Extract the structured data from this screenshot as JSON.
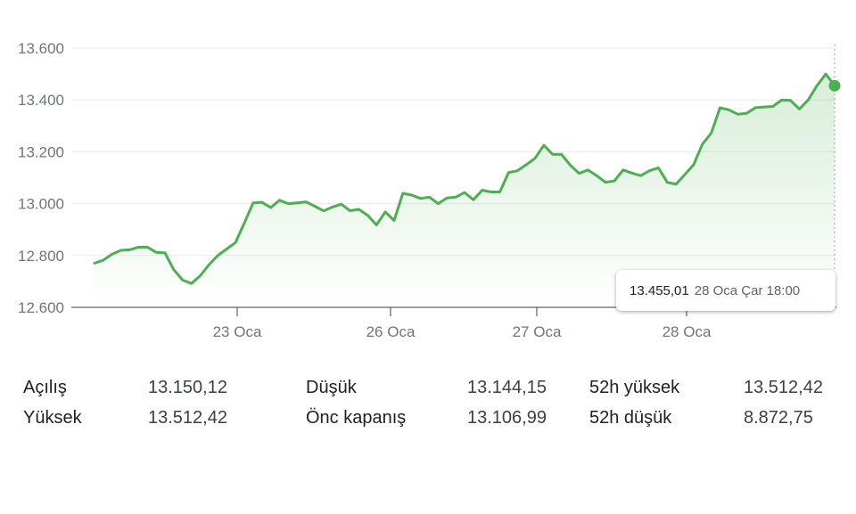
{
  "chart_data": {
    "type": "line",
    "y_ticks": [
      "13.600",
      "13.400",
      "13.200",
      "13.000",
      "12.800",
      "12.600"
    ],
    "y_tick_values": [
      13600,
      13400,
      13200,
      13000,
      12800,
      12600
    ],
    "ylim": [
      12600,
      13600
    ],
    "x_ticks": [
      "23 Oca",
      "26 Oca",
      "27 Oca",
      "28 Oca"
    ],
    "grid": true,
    "line_color": "#4caf50",
    "series": [
      {
        "values": [
          12770,
          12782,
          12805,
          12820,
          12822,
          12832,
          12832,
          12812,
          12810,
          12745,
          12705,
          12692,
          12722,
          12765,
          12800,
          12825,
          12850,
          12925,
          13003,
          13005,
          12985,
          13013,
          13000,
          13003,
          13007,
          12990,
          12972,
          12987,
          12998,
          12973,
          12978,
          12955,
          12918,
          12968,
          12935,
          13040,
          13033,
          13020,
          13025,
          13000,
          13022,
          13025,
          13043,
          13015,
          13052,
          13045,
          13045,
          13120,
          13127,
          13150,
          13175,
          13225,
          13190,
          13190,
          13148,
          13117,
          13130,
          13108,
          13082,
          13088,
          13130,
          13118,
          13108,
          13127,
          13138,
          13082,
          13075,
          13112,
          13150,
          13230,
          13272,
          13370,
          13362,
          13345,
          13348,
          13370,
          13373,
          13375,
          13400,
          13398,
          13365,
          13400,
          13455,
          13500,
          13455
        ]
      }
    ]
  },
  "tooltip": {
    "value": "13.455,01",
    "date": "28 Oca Çar 18:00"
  },
  "stats": [
    {
      "key": "open",
      "label": "Açılış",
      "value": "13.150,12"
    },
    {
      "key": "high",
      "label": "Yüksek",
      "value": "13.512,42"
    },
    {
      "key": "low",
      "label": "Düşük",
      "value": "13.144,15"
    },
    {
      "key": "prev_close",
      "label": "Önc kapanış",
      "value": "13.106,99"
    },
    {
      "key": "high_52w",
      "label": "52h yüksek",
      "value": "13.512,42"
    },
    {
      "key": "low_52w",
      "label": "52h düşük",
      "value": "8.872,75"
    }
  ]
}
